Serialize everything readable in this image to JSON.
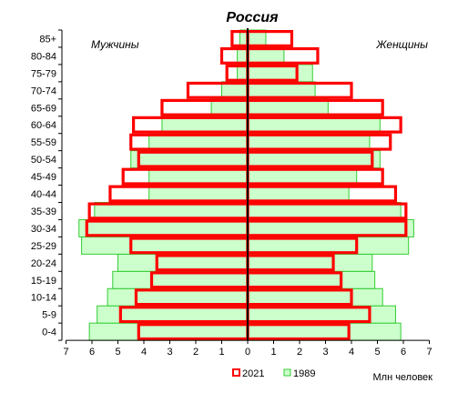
{
  "chart_data": {
    "type": "bar",
    "title": "Россия",
    "left_label": "Мужчины",
    "right_label": "Женщины",
    "xlabel": "Млн человек",
    "xlim": [
      -7,
      7
    ],
    "x_ticks": [
      "7",
      "6",
      "5",
      "4",
      "3",
      "2",
      "1",
      "0",
      "1",
      "2",
      "3",
      "4",
      "5",
      "6",
      "7"
    ],
    "categories": [
      "0-4",
      "5-9",
      "10-14",
      "15-19",
      "20-24",
      "25-29",
      "30-34",
      "35-39",
      "40-44",
      "45-49",
      "50-54",
      "55-59",
      "60-64",
      "65-69",
      "70-74",
      "75-79",
      "80-84",
      "85+"
    ],
    "series": [
      {
        "name": "2021",
        "color": "#ff0000",
        "style": "outline",
        "male": [
          4.2,
          4.9,
          4.3,
          3.7,
          3.5,
          4.5,
          6.2,
          6.1,
          5.3,
          4.8,
          4.2,
          4.5,
          4.4,
          3.3,
          2.3,
          0.8,
          1.0,
          0.6
        ],
        "female": [
          3.9,
          4.7,
          4.0,
          3.6,
          3.3,
          4.2,
          6.1,
          6.1,
          5.7,
          5.2,
          4.8,
          5.5,
          5.9,
          5.2,
          4.0,
          1.9,
          2.7,
          1.7
        ]
      },
      {
        "name": "1989",
        "color": "#33cc33",
        "fill": "#ccffcc",
        "style": "filled",
        "male": [
          6.1,
          5.8,
          5.4,
          5.2,
          5.0,
          6.4,
          6.5,
          5.9,
          3.8,
          3.8,
          4.5,
          3.8,
          3.3,
          1.4,
          1.0,
          0.4,
          0.4,
          0.3
        ],
        "female": [
          5.9,
          5.7,
          5.2,
          4.9,
          4.8,
          6.2,
          6.4,
          5.9,
          3.9,
          4.2,
          5.1,
          4.7,
          5.1,
          3.1,
          2.6,
          2.5,
          1.4,
          0.7
        ]
      }
    ]
  }
}
